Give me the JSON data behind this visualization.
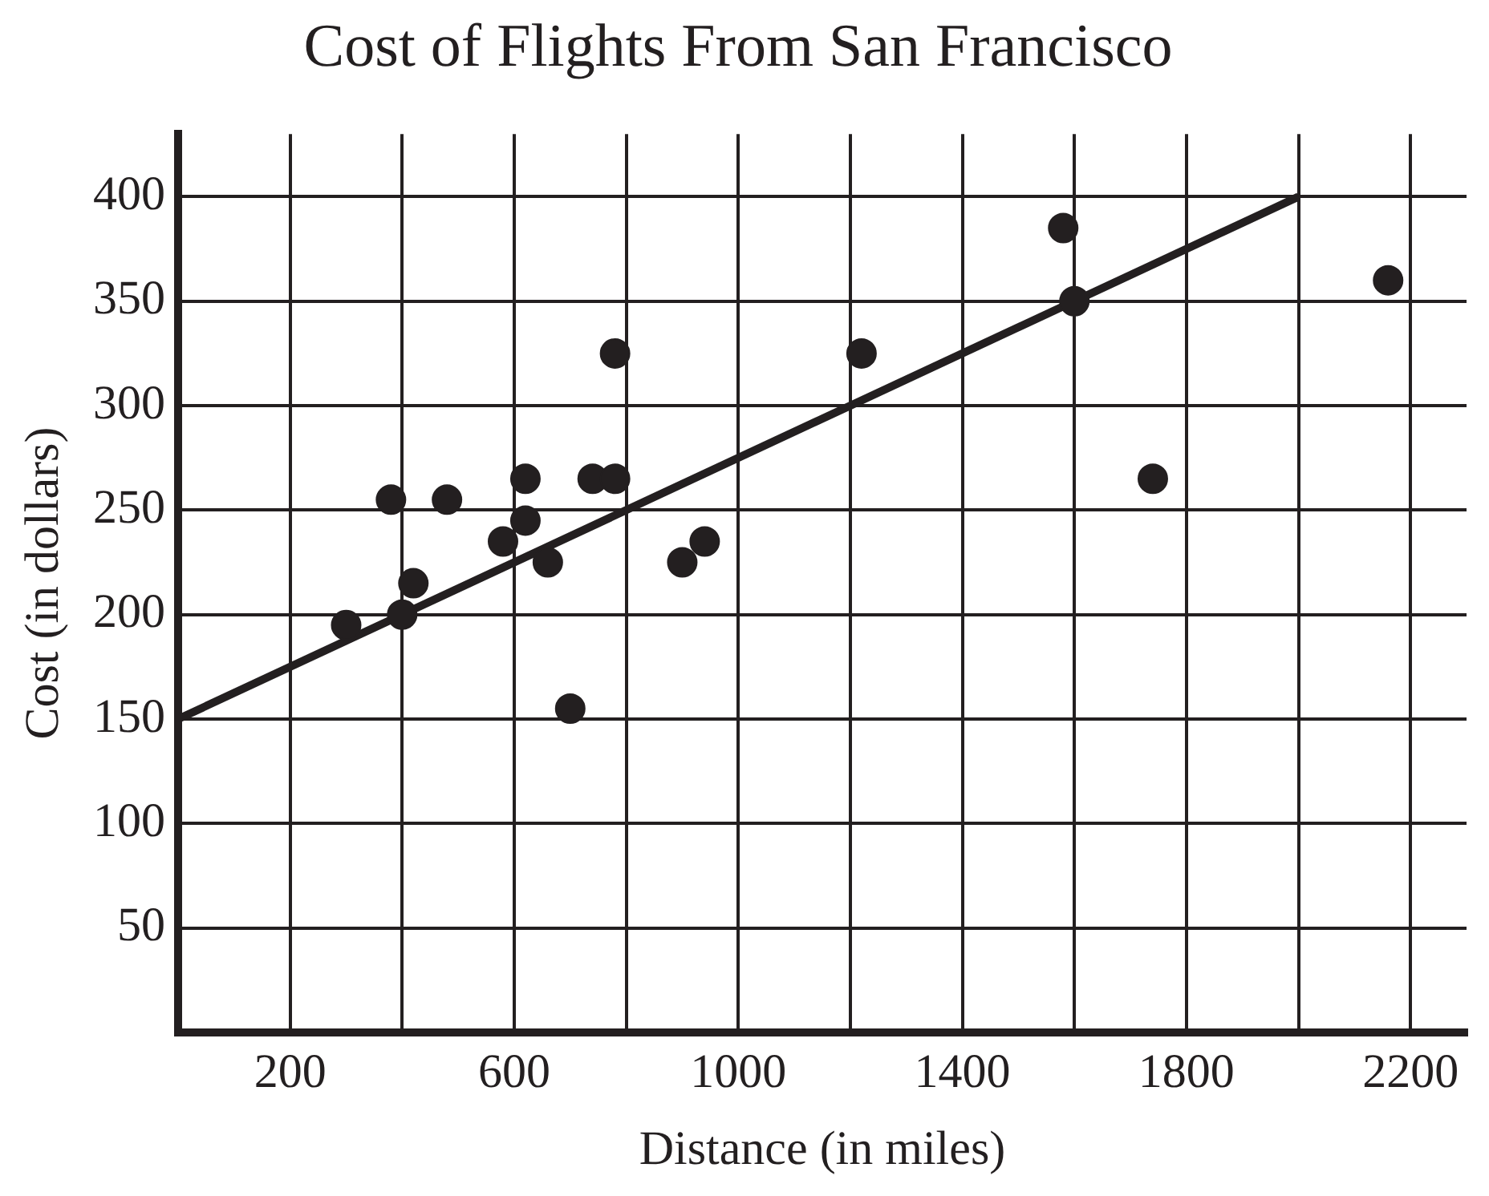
{
  "chart_data": {
    "type": "scatter",
    "title": "Cost of Flights From San Francisco",
    "xlabel": "Distance (in miles)",
    "ylabel": "Cost (in dollars)",
    "series": [
      {
        "marker": "circle",
        "color": "#231f20",
        "x": [
          300,
          380,
          400,
          420,
          480,
          580,
          620,
          620,
          660,
          700,
          740,
          780,
          780,
          900,
          940,
          1220,
          1580,
          1600,
          1740,
          2160
        ],
        "values": [
          195,
          255,
          200,
          215,
          255,
          235,
          265,
          245,
          225,
          155,
          265,
          265,
          325,
          225,
          235,
          325,
          385,
          350,
          265,
          360
        ]
      },
      {
        "type": "line",
        "marker": "none",
        "color": "#231f20",
        "x": [
          0,
          2000
        ],
        "values": [
          150,
          400
        ]
      }
    ],
    "xlim": [
      0,
      2300
    ],
    "ylim": [
      0,
      430
    ],
    "xticks": [
      {
        "value": 0,
        "label": null
      },
      200,
      {
        "value": 400,
        "label": null
      },
      600,
      {
        "value": 800,
        "label": null
      },
      1000,
      {
        "value": 1200,
        "label": null
      },
      1400,
      {
        "value": 1600,
        "label": null
      },
      1800,
      {
        "value": 2000,
        "label": null
      },
      2200
    ],
    "yticks": [
      {
        "value": 0,
        "label": null
      },
      50,
      100,
      150,
      200,
      250,
      300,
      350,
      400
    ],
    "grid": true,
    "legend": false
  }
}
